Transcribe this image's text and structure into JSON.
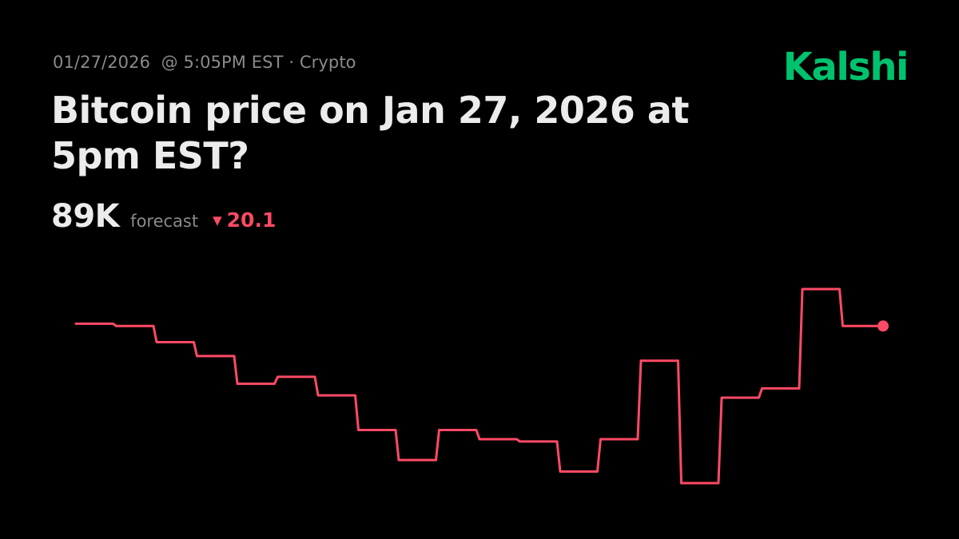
{
  "header": {
    "date": "01/27/2026",
    "time": "@ 5:05PM EST",
    "separator": "·",
    "category": "Crypto",
    "brand": "Kalshi",
    "title": "Bitcoin price on Jan 27, 2026 at 5pm EST?"
  },
  "forecast": {
    "value": "89K",
    "label": "forecast",
    "change_icon": "down-triangle-icon",
    "change_glyph": "▼",
    "change": "20.1"
  },
  "colors": {
    "background": "#000000",
    "brand": "#00c26e",
    "line": "#ff4a66",
    "text": "#ececec",
    "muted": "#8a8a8a"
  },
  "chart_data": {
    "type": "line",
    "step": true,
    "title": "",
    "xlabel": "",
    "ylabel": "",
    "axes_visible": false,
    "grid": false,
    "ylim": [
      0,
      100
    ],
    "series": [
      {
        "name": "",
        "end_marker": true,
        "values": [
          56,
          55,
          48,
          42,
          30,
          33,
          25,
          10,
          -3,
          10,
          6,
          5,
          -8,
          6,
          40,
          -13,
          24,
          28,
          71,
          55
        ]
      }
    ]
  }
}
